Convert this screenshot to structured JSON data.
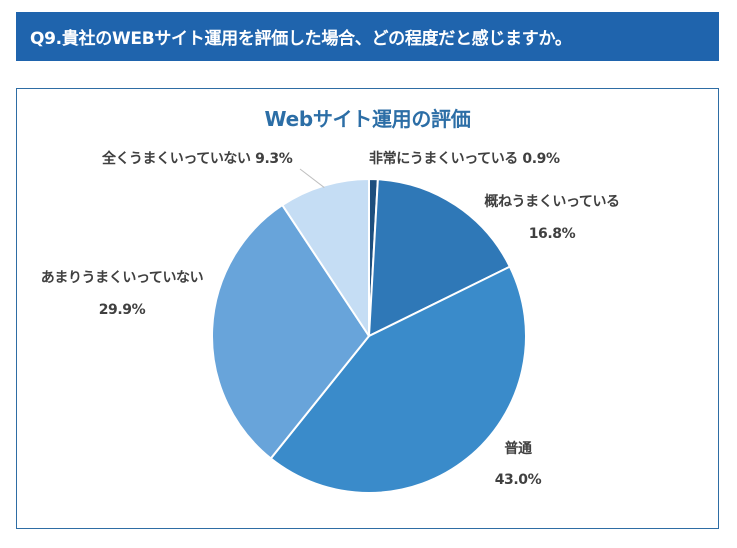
{
  "header": {
    "question": "Q9.貴社のWEBサイト運用を評価した場合、どの程度だと感じますか。"
  },
  "colors": {
    "header_bg": "#1f64ad",
    "title": "#2c6ea6",
    "frame_border": "#2e6da4"
  },
  "chart_data": {
    "type": "pie",
    "title": "Webサイト運用の評価",
    "start_angle_deg": 0,
    "direction": "clockwise",
    "legend": "none",
    "slices": [
      {
        "label": "非常にうまくいっている",
        "value": 0.9,
        "value_label": "0.9%",
        "color": "#1d4f7e"
      },
      {
        "label": "概ねうまくいっている",
        "value": 16.8,
        "value_label": "16.8%",
        "color": "#2f78b7"
      },
      {
        "label": "普通",
        "value": 43.0,
        "value_label": "43.0%",
        "color": "#3a8bca"
      },
      {
        "label": "あまりうまくいっていない",
        "value": 29.9,
        "value_label": "29.9%",
        "color": "#68a4da"
      },
      {
        "label": "全くうまくいっていない",
        "value": 9.3,
        "value_label": "9.3%",
        "color": "#c5ddf4"
      }
    ]
  }
}
